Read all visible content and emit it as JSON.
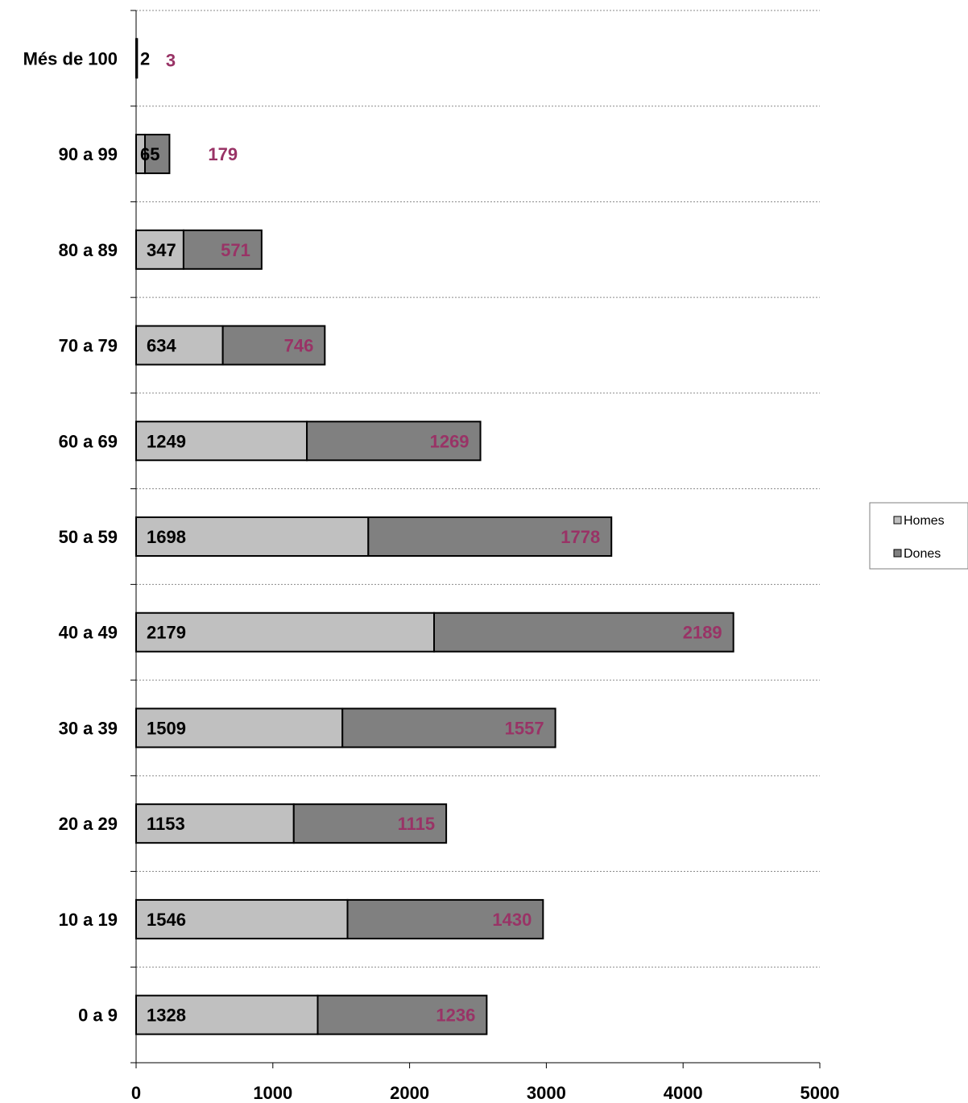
{
  "chart_data": {
    "type": "bar",
    "orientation": "horizontal",
    "stacked": true,
    "categories": [
      "0 a 9",
      "10 a 19",
      "20 a 29",
      "30 a 39",
      "40 a 49",
      "50 a 59",
      "60 a 69",
      "70 a 79",
      "80 a 89",
      "90 a 99",
      "Més de 100"
    ],
    "series": [
      {
        "name": "Homes",
        "values": [
          1328,
          1546,
          1153,
          1509,
          2179,
          1698,
          1249,
          634,
          347,
          65,
          2
        ],
        "color": "#c0c0c0",
        "label_color": "#000000"
      },
      {
        "name": "Dones",
        "values": [
          1236,
          1430,
          1115,
          1557,
          2189,
          1778,
          1269,
          746,
          571,
          179,
          3
        ],
        "color": "#808080",
        "label_color": "#993366"
      }
    ],
    "xlim": [
      0,
      5000
    ],
    "xticks": [
      "0",
      "1000",
      "2000",
      "3000",
      "4000",
      "5000"
    ],
    "grid": true,
    "legend_position": "right"
  }
}
